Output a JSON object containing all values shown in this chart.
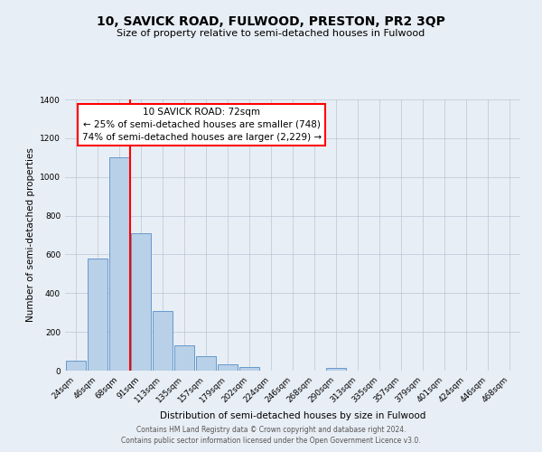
{
  "title": "10, SAVICK ROAD, FULWOOD, PRESTON, PR2 3QP",
  "subtitle": "Size of property relative to semi-detached houses in Fulwood",
  "xlabel": "Distribution of semi-detached houses by size in Fulwood",
  "ylabel": "Number of semi-detached properties",
  "bar_labels": [
    "24sqm",
    "46sqm",
    "68sqm",
    "91sqm",
    "113sqm",
    "135sqm",
    "157sqm",
    "179sqm",
    "202sqm",
    "224sqm",
    "246sqm",
    "268sqm",
    "290sqm",
    "313sqm",
    "335sqm",
    "357sqm",
    "379sqm",
    "401sqm",
    "424sqm",
    "446sqm",
    "468sqm"
  ],
  "bar_values": [
    50,
    580,
    1100,
    710,
    310,
    130,
    75,
    35,
    20,
    0,
    0,
    0,
    15,
    0,
    0,
    0,
    0,
    0,
    0,
    0,
    0
  ],
  "bar_color": "#b8d0e8",
  "bar_edge_color": "#6699cc",
  "vline_x": 2.5,
  "vline_color": "red",
  "ylim": [
    0,
    1400
  ],
  "yticks": [
    0,
    200,
    400,
    600,
    800,
    1000,
    1200,
    1400
  ],
  "annotation_title": "10 SAVICK ROAD: 72sqm",
  "annotation_line1": "← 25% of semi-detached houses are smaller (748)",
  "annotation_line2": "74% of semi-detached houses are larger (2,229) →",
  "annotation_box_color": "white",
  "annotation_box_edge": "red",
  "footer1": "Contains HM Land Registry data © Crown copyright and database right 2024.",
  "footer2": "Contains public sector information licensed under the Open Government Licence v3.0.",
  "background_color": "#e8eef5",
  "plot_bg_color": "#e8eef5",
  "title_fontsize": 10,
  "subtitle_fontsize": 8,
  "axis_label_fontsize": 7.5,
  "tick_fontsize": 6.5,
  "footer_fontsize": 5.5,
  "ann_fontsize": 7.5
}
